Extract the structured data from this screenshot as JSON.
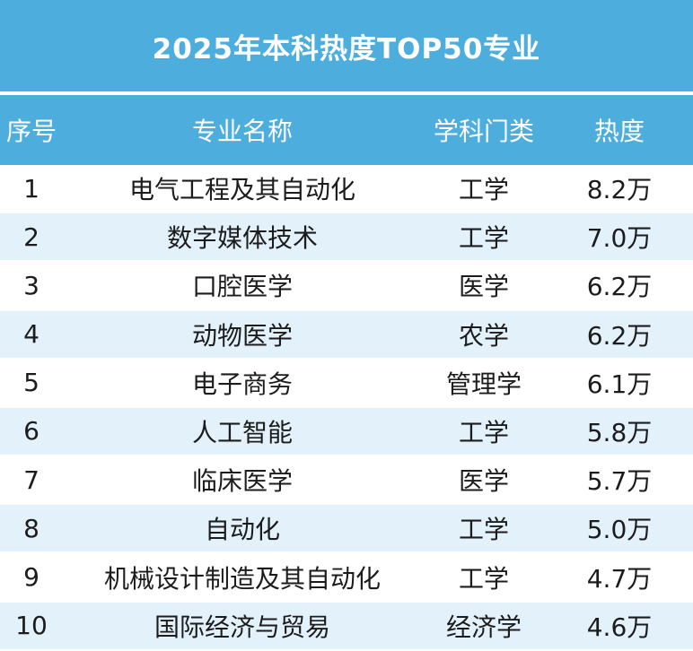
{
  "title": "2025年本科热度TOP50专业",
  "colors": {
    "header_bg": "#4daede",
    "header_text": "#ffffff",
    "stripe_bg": "#e3f1fb",
    "body_text": "#1c1c1c"
  },
  "table": {
    "headers": {
      "rank": "序号",
      "major": "专业名称",
      "category": "学科门类",
      "heat": "热度"
    },
    "rows": [
      {
        "rank": "1",
        "major": "电气工程及其自动化",
        "category": "工学",
        "heat": "8.2万"
      },
      {
        "rank": "2",
        "major": "数字媒体技术",
        "category": "工学",
        "heat": "7.0万"
      },
      {
        "rank": "3",
        "major": "口腔医学",
        "category": "医学",
        "heat": "6.2万"
      },
      {
        "rank": "4",
        "major": "动物医学",
        "category": "农学",
        "heat": "6.2万"
      },
      {
        "rank": "5",
        "major": "电子商务",
        "category": "管理学",
        "heat": "6.1万"
      },
      {
        "rank": "6",
        "major": "人工智能",
        "category": "工学",
        "heat": "5.8万"
      },
      {
        "rank": "7",
        "major": "临床医学",
        "category": "医学",
        "heat": "5.7万"
      },
      {
        "rank": "8",
        "major": "自动化",
        "category": "工学",
        "heat": "5.0万"
      },
      {
        "rank": "9",
        "major": "机械设计制造及其自动化",
        "category": "工学",
        "heat": "4.7万"
      },
      {
        "rank": "10",
        "major": "国际经济与贸易",
        "category": "经济学",
        "heat": "4.6万"
      }
    ]
  }
}
